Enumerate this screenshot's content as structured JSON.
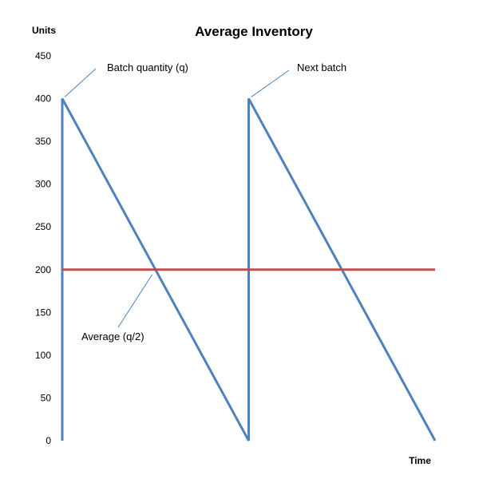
{
  "chart_data": {
    "type": "line",
    "title": "Average Inventory",
    "ylabel": "Units",
    "xlabel": "Time",
    "ylim": [
      0,
      450
    ],
    "yticks": [
      "0",
      "50",
      "100",
      "150",
      "200",
      "250",
      "300",
      "350",
      "400",
      "450"
    ],
    "xlim": [
      0,
      2
    ],
    "grid": false,
    "series": [
      {
        "values": [
          {
            "x": 0,
            "y": 0
          },
          {
            "x": 0,
            "y": 400
          },
          {
            "x": 1,
            "y": 0
          },
          {
            "x": 1,
            "y": 400
          },
          {
            "x": 2,
            "y": 0
          }
        ],
        "color": "#4f81bd"
      },
      {
        "values": [
          {
            "x": 0,
            "y": 200
          },
          {
            "x": 2,
            "y": 200
          }
        ],
        "color": "#c0504d"
      }
    ],
    "annotations": [
      {
        "text": "Batch quantity (q)",
        "target": {
          "x": 0,
          "y": 400
        }
      },
      {
        "text": "Next batch",
        "target": {
          "x": 1,
          "y": 400
        }
      },
      {
        "text": "Average  (q/2)",
        "target": {
          "x": 0.5,
          "y": 200
        }
      }
    ],
    "axis_color": "#4f81bd"
  }
}
